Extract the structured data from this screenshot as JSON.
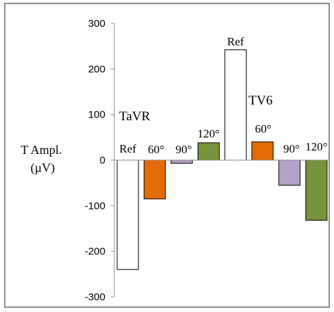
{
  "chart_data": {
    "type": "bar",
    "ylabel_lines": [
      "T Ampl.",
      "(µV)"
    ],
    "ylim": [
      -300,
      300
    ],
    "yticks": [
      300,
      200,
      100,
      0,
      -100,
      -200,
      -300
    ],
    "groups": [
      {
        "label": "TaVR",
        "bars": [
          {
            "category": "Ref",
            "value": -240
          },
          {
            "category": "60°",
            "value": -85
          },
          {
            "category": "90°",
            "value": -7
          },
          {
            "category": "120°",
            "value": 38
          }
        ]
      },
      {
        "label": "TV6",
        "bars": [
          {
            "category": "Ref",
            "value": 242
          },
          {
            "category": "60°",
            "value": 40
          },
          {
            "category": "90°",
            "value": -55
          },
          {
            "category": "120°",
            "value": -132
          }
        ]
      }
    ],
    "colors": {
      "Ref": "#ffffff",
      "60°": "#e36c09",
      "90°": "#b3a2c7",
      "120°": "#77933c"
    }
  }
}
